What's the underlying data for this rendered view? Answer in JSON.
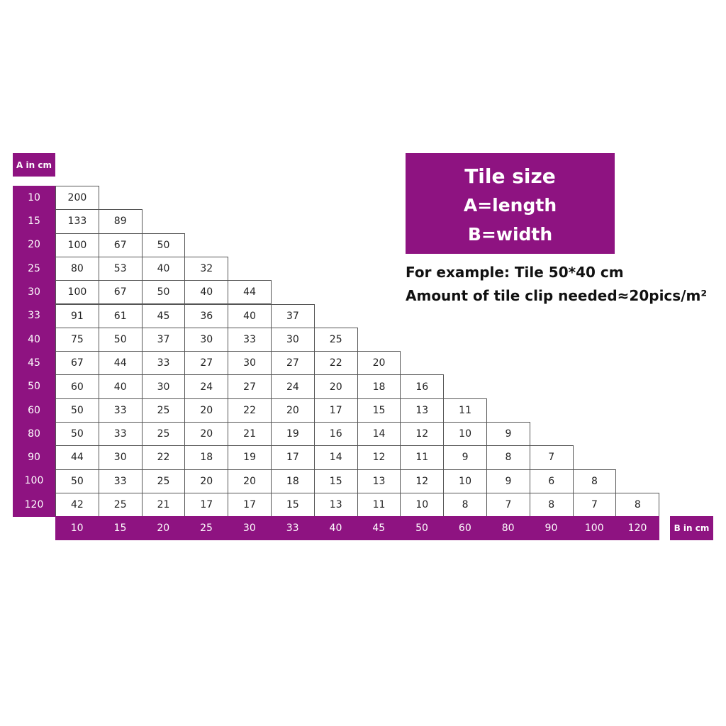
{
  "colors": {
    "accent": "#8e1381"
  },
  "axis_a_label": "A in cm",
  "axis_b_label": "B in cm",
  "title_box": {
    "line1": "Tile size",
    "line2": "A=length",
    "line3": "B=width"
  },
  "example": {
    "line1": "For example: Tile 50*40 cm",
    "line2": "Amount of tile clip needed≈20pics/m²"
  },
  "table": {
    "a_values": [
      "10",
      "15",
      "20",
      "25",
      "30",
      "33",
      "40",
      "45",
      "50",
      "60",
      "80",
      "90",
      "100",
      "120"
    ],
    "b_values": [
      "10",
      "15",
      "20",
      "25",
      "30",
      "33",
      "40",
      "45",
      "50",
      "60",
      "80",
      "90",
      "100",
      "120"
    ],
    "rows": [
      [
        "200"
      ],
      [
        "133",
        "89"
      ],
      [
        "100",
        "67",
        "50"
      ],
      [
        "80",
        "53",
        "40",
        "32"
      ],
      [
        "100",
        "67",
        "50",
        "40",
        "44"
      ],
      [
        "91",
        "61",
        "45",
        "36",
        "40",
        "37"
      ],
      [
        "75",
        "50",
        "37",
        "30",
        "33",
        "30",
        "25"
      ],
      [
        "67",
        "44",
        "33",
        "27",
        "30",
        "27",
        "22",
        "20"
      ],
      [
        "60",
        "40",
        "30",
        "24",
        "27",
        "24",
        "20",
        "18",
        "16"
      ],
      [
        "50",
        "33",
        "25",
        "20",
        "22",
        "20",
        "17",
        "15",
        "13",
        "11"
      ],
      [
        "50",
        "33",
        "25",
        "20",
        "21",
        "19",
        "16",
        "14",
        "12",
        "10",
        "9"
      ],
      [
        "44",
        "30",
        "22",
        "18",
        "19",
        "17",
        "14",
        "12",
        "11",
        "9",
        "8",
        "7"
      ],
      [
        "50",
        "33",
        "25",
        "20",
        "20",
        "18",
        "15",
        "13",
        "12",
        "10",
        "9",
        "6",
        "8"
      ],
      [
        "42",
        "25",
        "21",
        "17",
        "17",
        "15",
        "13",
        "11",
        "10",
        "8",
        "7",
        "8",
        "7",
        "8"
      ]
    ]
  }
}
